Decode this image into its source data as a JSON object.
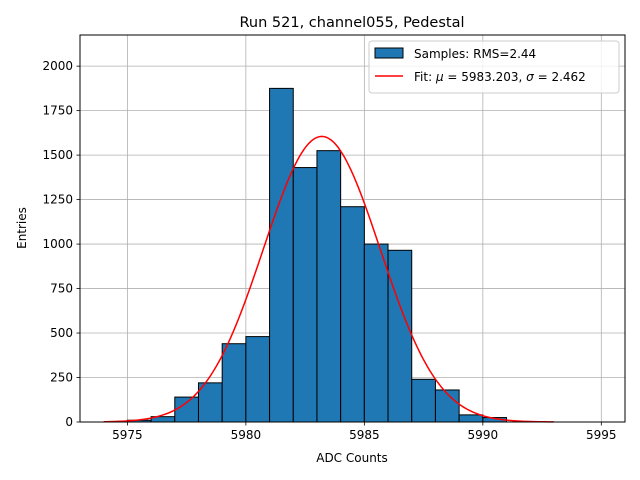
{
  "chart_data": {
    "type": "bar",
    "title": "Run 521, channel055, Pedestal",
    "xlabel": "ADC Counts",
    "ylabel": "Entries",
    "xlim": [
      5973.0,
      5996.0
    ],
    "ylim": [
      0,
      2175
    ],
    "xticks": [
      5975,
      5980,
      5985,
      5990,
      5995
    ],
    "yticks": [
      0,
      250,
      500,
      750,
      1000,
      1250,
      1500,
      1750,
      2000
    ],
    "grid": true,
    "legend_position": "top-right",
    "histogram": {
      "name": "Samples: RMS=2.44",
      "color": "#1f77b4",
      "bin_width": 1,
      "bin_left_edges": [
        5975,
        5976,
        5977,
        5978,
        5979,
        5980,
        5981,
        5982,
        5983,
        5984,
        5985,
        5986,
        5987,
        5988,
        5989,
        5990
      ],
      "counts": [
        10,
        30,
        140,
        220,
        440,
        480,
        1875,
        1430,
        1525,
        1210,
        1000,
        965,
        240,
        180,
        40,
        25
      ]
    },
    "fit": {
      "name": "Fit: μ = 5983.203, σ = 2.462",
      "name_parts": {
        "prefix": "Fit: ",
        "mu_symbol": "μ",
        "mu_text": " = 5983.203, ",
        "sigma_symbol": "σ",
        "sigma_text": " = 2.462"
      },
      "color": "#ff0000",
      "mu": 5983.203,
      "sigma": 2.462,
      "amplitude": 1605,
      "x_range": [
        5974,
        5993
      ]
    }
  }
}
